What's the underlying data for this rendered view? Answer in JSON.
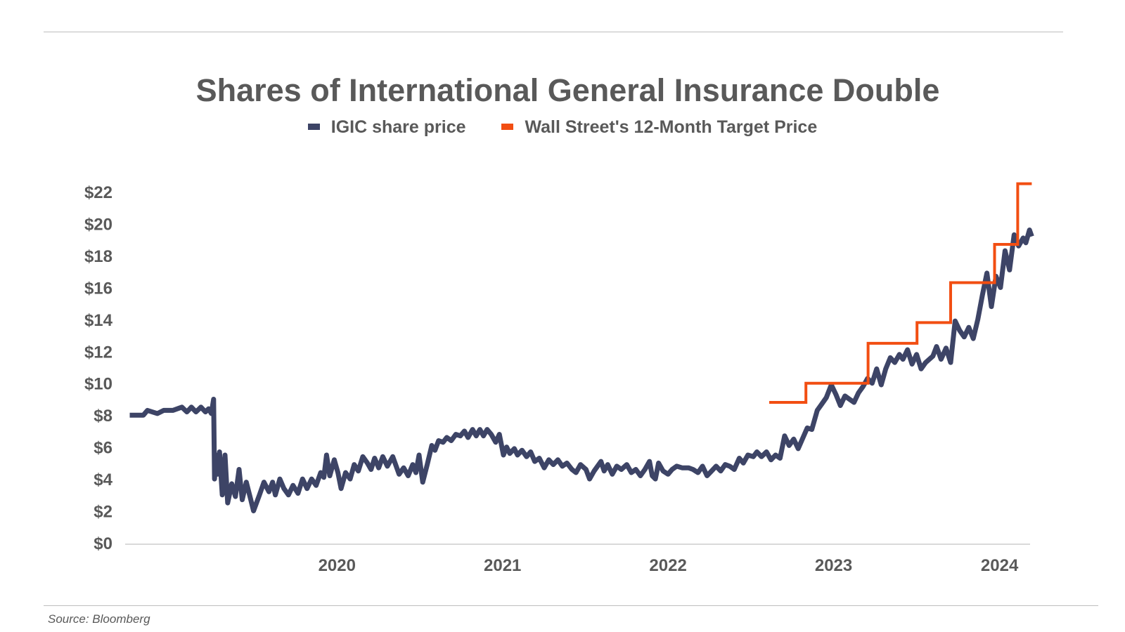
{
  "chart_data": {
    "type": "line",
    "title": "Shares of International General Insurance Double",
    "xlabel": "",
    "ylabel": "",
    "ylim": [
      0,
      22
    ],
    "y_ticks": [
      "$0",
      "$2",
      "$4",
      "$6",
      "$8",
      "$10",
      "$12",
      "$14",
      "$16",
      "$18",
      "$20",
      "$22"
    ],
    "x_ticks": [
      "2020",
      "2021",
      "2022",
      "2023",
      "2024"
    ],
    "grid": false,
    "legend_position": "top-center",
    "series": [
      {
        "name": "IGIC share price",
        "color": "#3d4466",
        "style": "line",
        "points": [
          [
            "2019-04-01",
            8.0
          ],
          [
            "2019-04-15",
            8.0
          ],
          [
            "2019-05-01",
            8.0
          ],
          [
            "2019-05-10",
            8.3
          ],
          [
            "2019-06-01",
            8.1
          ],
          [
            "2019-06-15",
            8.3
          ],
          [
            "2019-07-05",
            8.3
          ],
          [
            "2019-07-25",
            8.5
          ],
          [
            "2019-08-05",
            8.2
          ],
          [
            "2019-08-15",
            8.5
          ],
          [
            "2019-08-25",
            8.2
          ],
          [
            "2019-09-05",
            8.5
          ],
          [
            "2019-09-15",
            8.2
          ],
          [
            "2019-09-22",
            8.4
          ],
          [
            "2019-09-28",
            8.1
          ],
          [
            "2019-10-03",
            9.0
          ],
          [
            "2019-10-05",
            4.0
          ],
          [
            "2019-10-08",
            5.5
          ],
          [
            "2019-10-12",
            4.3
          ],
          [
            "2019-10-16",
            5.7
          ],
          [
            "2019-10-22",
            3.0
          ],
          [
            "2019-10-28",
            5.5
          ],
          [
            "2019-11-03",
            2.5
          ],
          [
            "2019-11-12",
            3.7
          ],
          [
            "2019-11-20",
            2.9
          ],
          [
            "2019-11-28",
            4.6
          ],
          [
            "2019-12-05",
            2.7
          ],
          [
            "2019-12-14",
            3.8
          ],
          [
            "2019-12-23",
            2.8
          ],
          [
            "2019-12-30",
            2.0
          ],
          [
            "2020-01-12",
            3.0
          ],
          [
            "2020-01-22",
            3.8
          ],
          [
            "2020-02-02",
            3.2
          ],
          [
            "2020-02-10",
            3.8
          ],
          [
            "2020-02-16",
            3.0
          ],
          [
            "2020-02-26",
            4.0
          ],
          [
            "2020-03-06",
            3.4
          ],
          [
            "2020-03-16",
            3.0
          ],
          [
            "2020-03-26",
            3.6
          ],
          [
            "2020-04-06",
            3.1
          ],
          [
            "2020-04-16",
            4.0
          ],
          [
            "2020-04-26",
            3.4
          ],
          [
            "2020-05-06",
            4.0
          ],
          [
            "2020-05-16",
            3.6
          ],
          [
            "2020-05-26",
            4.4
          ],
          [
            "2020-06-02",
            4.1
          ],
          [
            "2020-06-08",
            5.5
          ],
          [
            "2020-06-15",
            4.2
          ],
          [
            "2020-06-25",
            5.2
          ],
          [
            "2020-07-03",
            4.4
          ],
          [
            "2020-07-10",
            3.4
          ],
          [
            "2020-07-20",
            4.4
          ],
          [
            "2020-07-30",
            4.0
          ],
          [
            "2020-08-08",
            4.9
          ],
          [
            "2020-08-17",
            4.5
          ],
          [
            "2020-08-27",
            5.4
          ],
          [
            "2020-09-06",
            5.0
          ],
          [
            "2020-09-14",
            4.6
          ],
          [
            "2020-09-22",
            5.3
          ],
          [
            "2020-10-01",
            4.7
          ],
          [
            "2020-10-10",
            5.4
          ],
          [
            "2020-10-20",
            4.8
          ],
          [
            "2020-11-01",
            5.4
          ],
          [
            "2020-11-15",
            4.3
          ],
          [
            "2020-11-25",
            4.7
          ],
          [
            "2020-12-05",
            4.2
          ],
          [
            "2020-12-15",
            4.9
          ],
          [
            "2020-12-22",
            4.4
          ],
          [
            "2020-12-29",
            5.5
          ],
          [
            "2021-01-06",
            3.8
          ],
          [
            "2021-01-16",
            4.9
          ],
          [
            "2021-01-26",
            6.1
          ],
          [
            "2021-02-02",
            5.8
          ],
          [
            "2021-02-10",
            6.4
          ],
          [
            "2021-02-20",
            6.3
          ],
          [
            "2021-02-28",
            6.6
          ],
          [
            "2021-03-10",
            6.4
          ],
          [
            "2021-03-20",
            6.8
          ],
          [
            "2021-03-30",
            6.7
          ],
          [
            "2021-04-08",
            7.0
          ],
          [
            "2021-04-16",
            6.6
          ],
          [
            "2021-04-26",
            7.1
          ],
          [
            "2021-05-04",
            6.7
          ],
          [
            "2021-05-12",
            7.1
          ],
          [
            "2021-05-20",
            6.7
          ],
          [
            "2021-05-28",
            7.1
          ],
          [
            "2021-06-06",
            6.8
          ],
          [
            "2021-06-16",
            6.3
          ],
          [
            "2021-06-24",
            6.8
          ],
          [
            "2021-07-03",
            5.5
          ],
          [
            "2021-07-10",
            6.0
          ],
          [
            "2021-07-17",
            5.6
          ],
          [
            "2021-07-27",
            5.9
          ],
          [
            "2021-08-03",
            5.5
          ],
          [
            "2021-08-13",
            5.8
          ],
          [
            "2021-08-23",
            5.4
          ],
          [
            "2021-09-01",
            5.7
          ],
          [
            "2021-09-10",
            5.1
          ],
          [
            "2021-09-20",
            5.3
          ],
          [
            "2021-10-01",
            4.7
          ],
          [
            "2021-10-11",
            5.2
          ],
          [
            "2021-10-21",
            4.9
          ],
          [
            "2021-10-31",
            5.2
          ],
          [
            "2021-11-10",
            4.8
          ],
          [
            "2021-11-20",
            5.0
          ],
          [
            "2021-12-01",
            4.6
          ],
          [
            "2021-12-10",
            4.4
          ],
          [
            "2021-12-20",
            4.9
          ],
          [
            "2022-01-01",
            4.6
          ],
          [
            "2022-01-09",
            4.0
          ],
          [
            "2022-01-19",
            4.5
          ],
          [
            "2022-02-03",
            5.1
          ],
          [
            "2022-02-10",
            4.5
          ],
          [
            "2022-02-18",
            4.9
          ],
          [
            "2022-02-28",
            4.3
          ],
          [
            "2022-03-10",
            4.8
          ],
          [
            "2022-03-20",
            4.6
          ],
          [
            "2022-04-01",
            4.9
          ],
          [
            "2022-04-11",
            4.4
          ],
          [
            "2022-04-21",
            4.6
          ],
          [
            "2022-05-01",
            4.2
          ],
          [
            "2022-05-11",
            4.6
          ],
          [
            "2022-05-21",
            5.1
          ],
          [
            "2022-05-27",
            4.2
          ],
          [
            "2022-06-03",
            4.0
          ],
          [
            "2022-06-10",
            5.0
          ],
          [
            "2022-06-20",
            4.5
          ],
          [
            "2022-07-01",
            4.3
          ],
          [
            "2022-07-10",
            4.6
          ],
          [
            "2022-07-20",
            4.8
          ],
          [
            "2022-08-01",
            4.7
          ],
          [
            "2022-08-15",
            4.7
          ],
          [
            "2022-08-25",
            4.6
          ],
          [
            "2022-09-05",
            4.4
          ],
          [
            "2022-09-15",
            4.8
          ],
          [
            "2022-09-25",
            4.2
          ],
          [
            "2022-10-05",
            4.5
          ],
          [
            "2022-10-15",
            4.8
          ],
          [
            "2022-10-25",
            4.5
          ],
          [
            "2022-11-04",
            4.9
          ],
          [
            "2022-11-14",
            4.8
          ],
          [
            "2022-11-24",
            4.6
          ],
          [
            "2022-12-05",
            5.3
          ],
          [
            "2022-12-14",
            5.0
          ],
          [
            "2022-12-24",
            5.5
          ],
          [
            "2023-01-05",
            5.4
          ],
          [
            "2023-01-13",
            5.7
          ],
          [
            "2023-01-23",
            5.4
          ],
          [
            "2023-02-03",
            5.7
          ],
          [
            "2023-02-13",
            5.2
          ],
          [
            "2023-02-23",
            5.5
          ],
          [
            "2023-03-05",
            5.3
          ],
          [
            "2023-03-15",
            6.7
          ],
          [
            "2023-03-25",
            6.1
          ],
          [
            "2023-04-04",
            6.5
          ],
          [
            "2023-04-14",
            5.9
          ],
          [
            "2023-05-04",
            7.2
          ],
          [
            "2023-05-14",
            7.1
          ],
          [
            "2023-05-26",
            8.3
          ],
          [
            "2023-06-05",
            8.7
          ],
          [
            "2023-06-15",
            9.1
          ],
          [
            "2023-06-26",
            9.9
          ],
          [
            "2023-07-06",
            9.3
          ],
          [
            "2023-07-16",
            8.6
          ],
          [
            "2023-07-26",
            9.2
          ],
          [
            "2023-08-05",
            9.0
          ],
          [
            "2023-08-15",
            8.8
          ],
          [
            "2023-08-25",
            9.4
          ],
          [
            "2023-09-04",
            9.8
          ],
          [
            "2023-09-14",
            10.3
          ],
          [
            "2023-09-24",
            10.0
          ],
          [
            "2023-10-04",
            10.9
          ],
          [
            "2023-10-14",
            9.9
          ],
          [
            "2023-10-24",
            10.9
          ],
          [
            "2023-11-03",
            11.6
          ],
          [
            "2023-11-13",
            11.3
          ],
          [
            "2023-11-23",
            11.8
          ],
          [
            "2023-12-01",
            11.5
          ],
          [
            "2023-12-11",
            12.1
          ],
          [
            "2023-12-21",
            11.2
          ],
          [
            "2023-12-31",
            11.8
          ],
          [
            "2024-01-10",
            10.9
          ],
          [
            "2024-01-20",
            11.3
          ],
          [
            "2024-02-05",
            11.7
          ],
          [
            "2024-02-13",
            12.3
          ],
          [
            "2024-02-23",
            11.5
          ],
          [
            "2024-03-05",
            12.2
          ],
          [
            "2024-03-15",
            11.3
          ],
          [
            "2024-03-25",
            13.9
          ],
          [
            "2024-04-04",
            13.3
          ],
          [
            "2024-04-14",
            12.9
          ],
          [
            "2024-04-24",
            13.5
          ],
          [
            "2024-05-04",
            12.8
          ],
          [
            "2024-05-14",
            14.0
          ],
          [
            "2024-05-24",
            15.5
          ],
          [
            "2024-06-03",
            16.9
          ],
          [
            "2024-06-13",
            14.8
          ],
          [
            "2024-06-23",
            16.7
          ],
          [
            "2024-07-03",
            16.0
          ],
          [
            "2024-07-13",
            18.3
          ],
          [
            "2024-07-23",
            17.1
          ],
          [
            "2024-08-02",
            19.3
          ],
          [
            "2024-08-12",
            18.6
          ],
          [
            "2024-08-22",
            19.1
          ],
          [
            "2024-08-28",
            18.8
          ],
          [
            "2024-09-05",
            19.6
          ],
          [
            "2024-09-10",
            19.2
          ]
        ]
      },
      {
        "name": "Wall Street's 12-Month Target Price",
        "color": "#f24e12",
        "style": "step",
        "points": [
          [
            "2023-02-09",
            8.8
          ],
          [
            "2023-05-01",
            8.8
          ],
          [
            "2023-05-01",
            10.0
          ],
          [
            "2023-09-15",
            10.0
          ],
          [
            "2023-09-15",
            12.5
          ],
          [
            "2024-01-01",
            12.5
          ],
          [
            "2024-01-01",
            13.8
          ],
          [
            "2024-03-15",
            13.8
          ],
          [
            "2024-03-15",
            16.3
          ],
          [
            "2024-06-20",
            16.3
          ],
          [
            "2024-06-20",
            18.7
          ],
          [
            "2024-08-10",
            18.7
          ],
          [
            "2024-08-10",
            22.5
          ],
          [
            "2024-09-10",
            22.5
          ]
        ]
      }
    ],
    "source": "Source: Bloomberg"
  }
}
